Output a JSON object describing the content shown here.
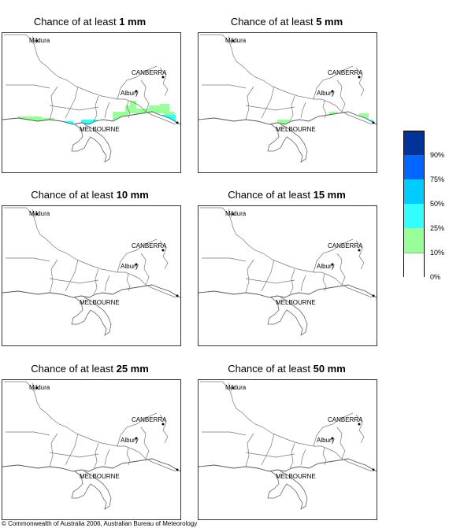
{
  "panels": [
    {
      "title_prefix": "Chance of at least ",
      "title_bold": "1 mm"
    },
    {
      "title_prefix": "Chance of at least ",
      "title_bold": "5 mm"
    },
    {
      "title_prefix": "Chance of at least ",
      "title_bold": "10 mm"
    },
    {
      "title_prefix": "Chance of at least ",
      "title_bold": "15 mm"
    },
    {
      "title_prefix": "Chance of at least ",
      "title_bold": "25 mm"
    },
    {
      "title_prefix": "Chance of at least ",
      "title_bold": "50 mm"
    }
  ],
  "map_labels": {
    "mildura": "Mildura",
    "canberra": "CANBERRA",
    "albury": "Albury",
    "melbourne": "MELBOURNE"
  },
  "legend": {
    "labels": [
      "90%",
      "75%",
      "50%",
      "25%",
      "10%",
      "0%"
    ],
    "colors": [
      "#003399",
      "#0066ff",
      "#00ccff",
      "#33ffff",
      "#99ff99",
      "#ffffff"
    ]
  },
  "copyright": "© Commonwealth of Australia 2006, Australian Bureau of Meteorology"
}
